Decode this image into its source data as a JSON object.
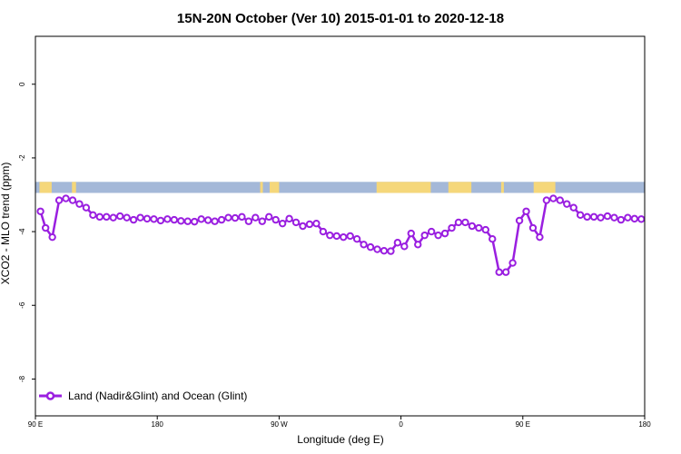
{
  "chart_data": {
    "type": "line",
    "title": "15N-20N October (Ver 10)   2015-01-01 to 2020-12-18",
    "xlabel": "Longitude (deg E)",
    "ylabel": "XCO2 - MLO trend (ppm)",
    "x_ticks": [
      {
        "value": 90,
        "label": "90 E"
      },
      {
        "value": 180,
        "label": "180"
      },
      {
        "value": 270,
        "label": "90 W"
      },
      {
        "value": 360,
        "label": "0"
      },
      {
        "value": 450,
        "label": "90 E"
      },
      {
        "value": 540,
        "label": "180"
      }
    ],
    "y_ticks": [
      {
        "value": 0,
        "label": "0"
      },
      {
        "value": -2,
        "label": "-2"
      },
      {
        "value": -4,
        "label": "-4"
      },
      {
        "value": -6,
        "label": "-6"
      },
      {
        "value": -8,
        "label": "-8"
      }
    ],
    "xlim": [
      90,
      540
    ],
    "ylim": [
      -9.0,
      1.3
    ],
    "grid": false,
    "legend_position": "bottom-left",
    "land_ocean_strip": {
      "y_range": [
        -2.95,
        -2.65
      ],
      "ocean_color": "#a4b8d8",
      "land_color": "#f5d77a",
      "land_segments": [
        [
          93,
          102
        ],
        [
          117,
          120
        ],
        [
          256,
          258
        ],
        [
          263,
          270
        ],
        [
          342,
          382
        ],
        [
          395,
          412
        ],
        [
          434,
          436
        ],
        [
          458,
          474
        ]
      ]
    },
    "series": [
      {
        "name": "Land (Nadir&Glint) and Ocean (Glint)",
        "color": "#9a1fe0",
        "x": [
          93.75,
          97.5,
          102.5,
          107.5,
          112.5,
          117.5,
          122.5,
          127.5,
          132.5,
          137.5,
          142.5,
          147.5,
          152.5,
          157.5,
          162.5,
          167.5,
          172.5,
          177.5,
          182.5,
          187.5,
          192.5,
          197.5,
          202.5,
          207.5,
          212.5,
          217.5,
          222.5,
          227.5,
          232.5,
          237.5,
          242.5,
          247.5,
          252.5,
          257.5,
          262.5,
          267.5,
          272.5,
          277.5,
          282.5,
          287.5,
          292.5,
          297.5,
          302.5,
          307.5,
          312.5,
          317.5,
          322.5,
          327.5,
          332.5,
          337.5,
          342.5,
          347.5,
          352.5,
          357.5,
          362.5,
          367.5,
          372.5,
          377.5,
          382.5,
          387.5,
          392.5,
          397.5,
          402.5,
          407.5,
          412.5,
          417.5,
          422.5,
          427.5,
          432.5,
          437.5,
          442.5,
          447.5,
          452.5,
          457.5,
          462.5,
          467.5,
          472.5,
          477.5,
          482.5,
          487.5,
          492.5,
          497.5,
          502.5,
          507.5,
          512.5,
          517.5,
          522.5,
          527.5,
          532.5,
          537.5
        ],
        "values": [
          -3.45,
          -3.9,
          -4.15,
          -3.15,
          -3.1,
          -3.15,
          -3.25,
          -3.35,
          -3.55,
          -3.6,
          -3.6,
          -3.62,
          -3.58,
          -3.62,
          -3.68,
          -3.62,
          -3.65,
          -3.66,
          -3.7,
          -3.66,
          -3.68,
          -3.71,
          -3.72,
          -3.73,
          -3.66,
          -3.69,
          -3.72,
          -3.68,
          -3.62,
          -3.63,
          -3.6,
          -3.72,
          -3.62,
          -3.72,
          -3.6,
          -3.68,
          -3.78,
          -3.65,
          -3.75,
          -3.85,
          -3.8,
          -3.78,
          -4.0,
          -4.1,
          -4.12,
          -4.15,
          -4.12,
          -4.2,
          -4.35,
          -4.42,
          -4.48,
          -4.52,
          -4.53,
          -4.3,
          -4.4,
          -4.05,
          -4.35,
          -4.1,
          -4.0,
          -4.1,
          -4.05,
          -3.9,
          -3.75,
          -3.75,
          -3.85,
          -3.9,
          -3.95,
          -4.2,
          -5.1,
          -5.1,
          -4.85,
          -3.7,
          -3.45,
          -3.9,
          -4.15,
          -3.15,
          -3.1,
          -3.15,
          -3.25,
          -3.35,
          -3.55,
          -3.6,
          -3.6,
          -3.62,
          -3.58,
          -3.62,
          -3.68,
          -3.62,
          -3.65,
          -3.66
        ]
      }
    ]
  }
}
